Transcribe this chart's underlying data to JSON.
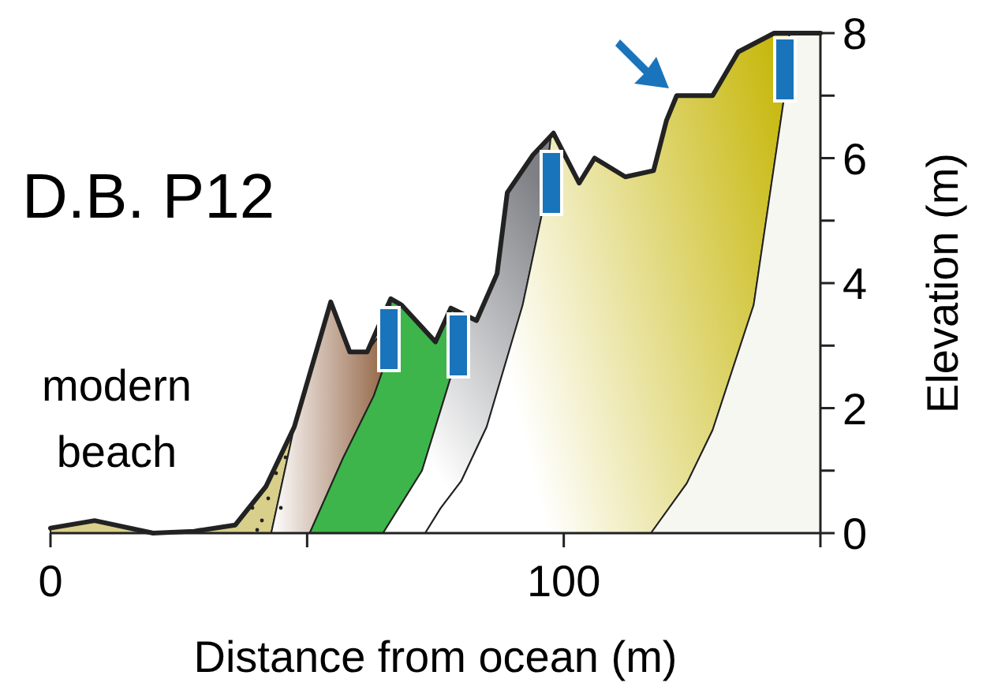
{
  "chart_data": {
    "type": "line",
    "title": "D.B. P12",
    "xlabel": "Distance from ocean (m)",
    "ylabel": "Elevation (m)",
    "annotations": [
      "modern beach"
    ],
    "xlim": [
      0,
      150
    ],
    "xticks": [
      0,
      {
        "value": 50,
        "label": null
      },
      100,
      {
        "value": 150,
        "label": null
      }
    ],
    "ylim": [
      0,
      8
    ],
    "yticks": [
      0,
      {
        "value": 1,
        "label": null
      },
      2,
      {
        "value": 3,
        "label": null
      },
      4,
      {
        "value": 5,
        "label": null
      },
      6,
      {
        "value": 7,
        "label": null
      },
      8
    ],
    "marker": "none",
    "line_style": "solid",
    "series": [
      {
        "color": "#222222",
        "x": [
          0,
          8.6,
          20,
          28,
          36,
          42,
          47.5,
          54.6,
          58.3,
          61.7,
          66.3,
          68.4,
          75,
          78,
          83,
          87,
          89,
          94,
          98,
          103,
          106,
          112,
          117.5,
          120,
          122,
          129,
          134,
          141,
          150
        ],
        "values": [
          0.08,
          0.2,
          0,
          0.03,
          0.13,
          0.75,
          1.7,
          3.7,
          2.9,
          2.9,
          3.75,
          3.65,
          3.06,
          3.6,
          3.4,
          4.15,
          5.45,
          6.05,
          6.4,
          5.6,
          6.0,
          5.7,
          5.8,
          6.6,
          7.0,
          7.0,
          7.7,
          8.0,
          8.0
        ]
      }
    ]
  }
}
